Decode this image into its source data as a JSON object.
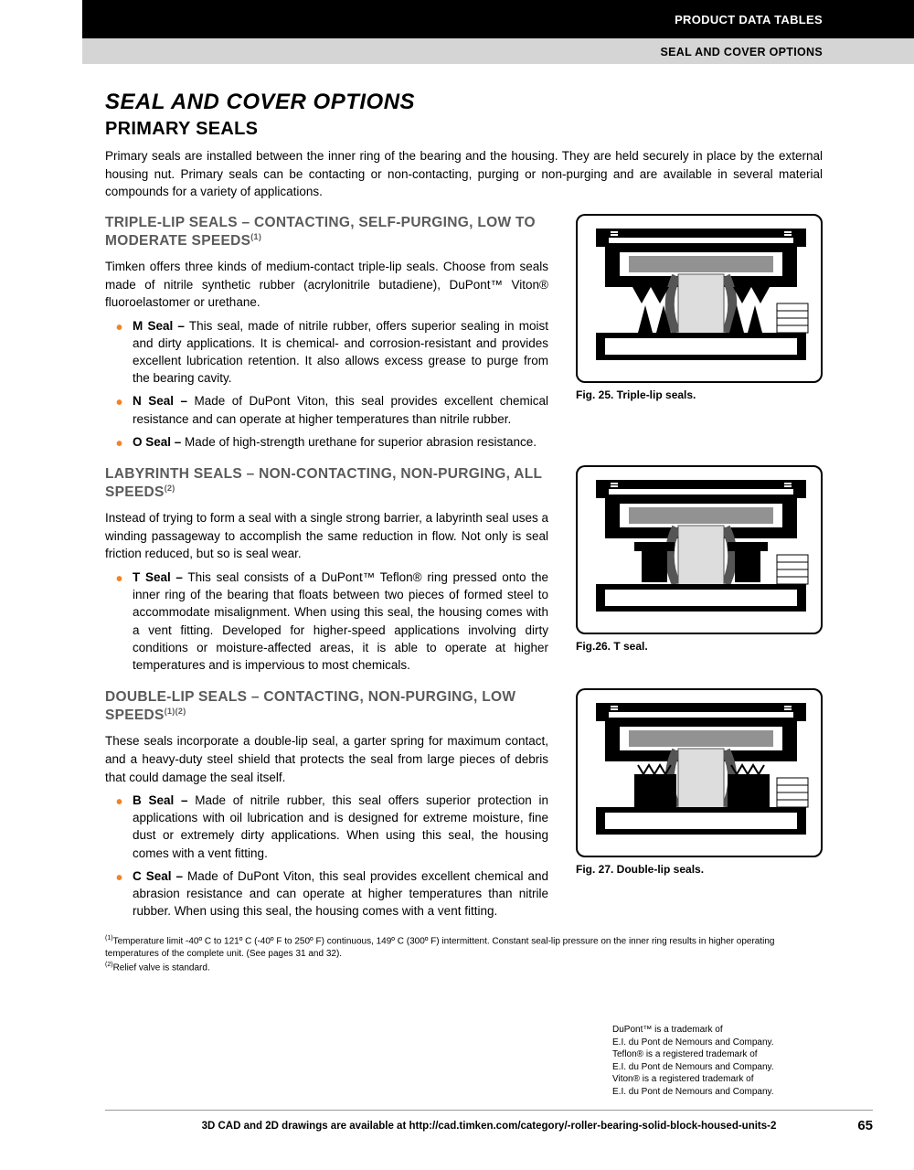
{
  "header": {
    "black_bar": "PRODUCT DATA TABLES",
    "grey_bar": "SEAL AND COVER OPTIONS"
  },
  "title_italic": "SEAL AND COVER OPTIONS",
  "title_sub": "PRIMARY SEALS",
  "intro": "Primary seals are installed between the inner ring of the bearing and the housing. They are held securely in place by the external housing nut. Primary seals can be contacting or non-contacting, purging or non-purging and are available in several material compounds for a variety of applications.",
  "sections": [
    {
      "head": "TRIPLE-LIP SEALS – CONTACTING, SELF-PURGING, LOW TO MODERATE SPEEDS",
      "head_sup": "(1)",
      "body": "Timken offers three kinds of medium-contact triple-lip seals. Choose from seals made of nitrile synthetic rubber (acrylonitrile butadiene), DuPont™ Viton® fluoroelastomer or urethane.",
      "items": [
        {
          "label": "M Seal –",
          "text": " This seal, made of nitrile rubber, offers superior sealing in moist and dirty applications. It is chemical- and corrosion-resistant and provides excellent lubrication retention. It also allows excess grease to purge from the bearing cavity."
        },
        {
          "label": "N Seal –",
          "text": " Made of DuPont Viton, this seal provides excellent chemical resistance and can operate at higher temperatures than nitrile rubber."
        },
        {
          "label": "O Seal –",
          "text": " Made of high-strength urethane for superior abrasion resistance."
        }
      ],
      "fig_caption": "Fig. 25. Triple-lip seals."
    },
    {
      "head": "LABYRINTH SEALS – NON-CONTACTING, NON-PURGING, ALL SPEEDS",
      "head_sup": "(2)",
      "body": "Instead of trying to form a seal with a single strong barrier, a labyrinth seal uses a winding passageway to accomplish the same reduction in flow. Not only is seal friction reduced, but so is seal wear.",
      "items": [
        {
          "label": "T Seal –",
          "text": " This seal consists of a DuPont™ Teflon® ring pressed onto the inner ring of the bearing that floats between two pieces of formed steel to accommodate misalignment. When using this seal, the housing comes with a vent fitting. Developed for higher-speed applications involving dirty conditions or moisture-affected areas, it is able to operate at higher temperatures and is impervious to most chemicals."
        }
      ],
      "fig_caption": "Fig.26. T seal."
    },
    {
      "head": "DOUBLE-LIP SEALS – CONTACTING, NON-PURGING, LOW SPEEDS",
      "head_sup": "(1)(2)",
      "body": "These seals incorporate a double-lip seal, a garter spring for maximum contact, and a heavy-duty steel shield that protects the seal from large pieces of debris that could damage the seal itself.",
      "items": [
        {
          "label": "B Seal –",
          "text": " Made of nitrile rubber, this seal offers superior protection in applications with oil lubrication and is designed for extreme moisture, fine dust or extremely dirty applications. When using this seal, the housing comes with a vent fitting."
        },
        {
          "label": "C Seal –",
          "text": " Made of DuPont Viton, this seal provides excellent chemical and abrasion resistance and can operate at higher temperatures than nitrile rubber. When using this seal, the housing comes with a vent fitting."
        }
      ],
      "fig_caption": "Fig. 27. Double-lip seals."
    }
  ],
  "footnote1_sup": "(1)",
  "footnote1": "Temperature limit -40º C to 121º C (-40º F to 250º F) continuous, 149º C (300º F) intermittent. Constant seal-lip pressure on the inner ring results in higher operating temperatures of the complete unit. (See pages 31 and 32).",
  "footnote2_sup": "(2)",
  "footnote2": "Relief valve is standard.",
  "trademark": "DuPont™ is a trademark of\nE.I. du Pont de Nemours and Company.\nTeflon® is a registered trademark of\nE.I. du Pont de Nemours and Company.\nViton® is a registered trademark of\nE.I. du Pont de Nemours and Company.",
  "footer_text": "3D CAD and 2D drawings are available at http://cad.timken.com/category/-roller-bearing-solid-block-housed-units-2",
  "page_num": "65"
}
